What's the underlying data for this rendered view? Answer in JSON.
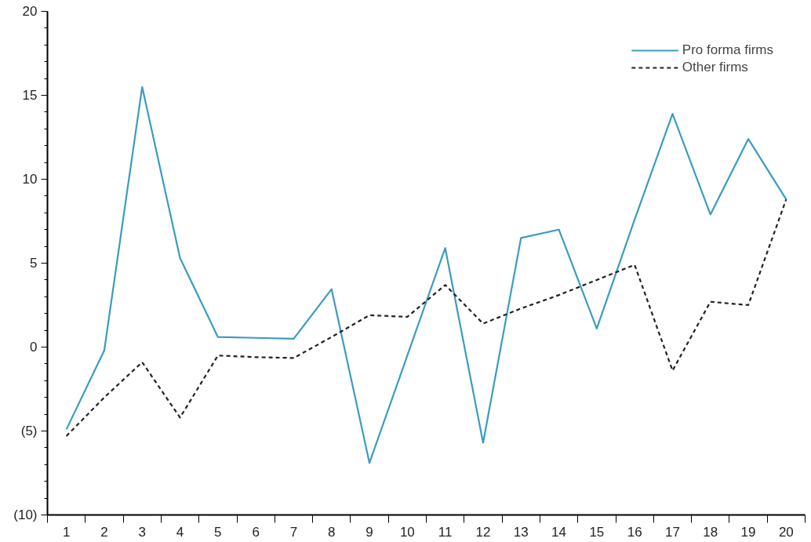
{
  "chart_data": {
    "type": "line",
    "x": [
      1,
      2,
      3,
      4,
      5,
      6,
      7,
      8,
      9,
      10,
      11,
      12,
      13,
      14,
      15,
      16,
      17,
      18,
      19,
      20
    ],
    "series": [
      {
        "name": "Pro forma firms",
        "color": "#3a9cc0",
        "line_style": "solid",
        "values": [
          -4.9,
          -0.2,
          15.5,
          5.3,
          0.6,
          0.55,
          0.5,
          3.45,
          -6.9,
          -0.5,
          5.9,
          -5.7,
          6.5,
          7.0,
          1.1,
          7.6,
          13.9,
          7.9,
          12.4,
          8.8
        ]
      },
      {
        "name": "Other firms",
        "color": "#222222",
        "line_style": "dashed",
        "values": [
          -5.3,
          -3.0,
          -0.9,
          -4.2,
          -0.5,
          -0.6,
          -0.65,
          0.6,
          1.9,
          1.8,
          3.7,
          1.4,
          2.3,
          3.1,
          4.0,
          4.9,
          -1.4,
          2.7,
          2.5,
          8.8
        ]
      }
    ],
    "xlim": [
      0.5,
      20.5
    ],
    "xticks": [
      1,
      2,
      3,
      4,
      5,
      6,
      7,
      8,
      9,
      10,
      11,
      12,
      13,
      14,
      15,
      16,
      17,
      18,
      19,
      20
    ],
    "ylim": [
      -10,
      20
    ],
    "yticks": [
      {
        "value": -10,
        "label": "(10)"
      },
      {
        "value": -5,
        "label": "(5)"
      },
      0,
      5,
      10,
      15,
      20
    ],
    "grid": false,
    "legend": "top right",
    "marker": "none"
  }
}
